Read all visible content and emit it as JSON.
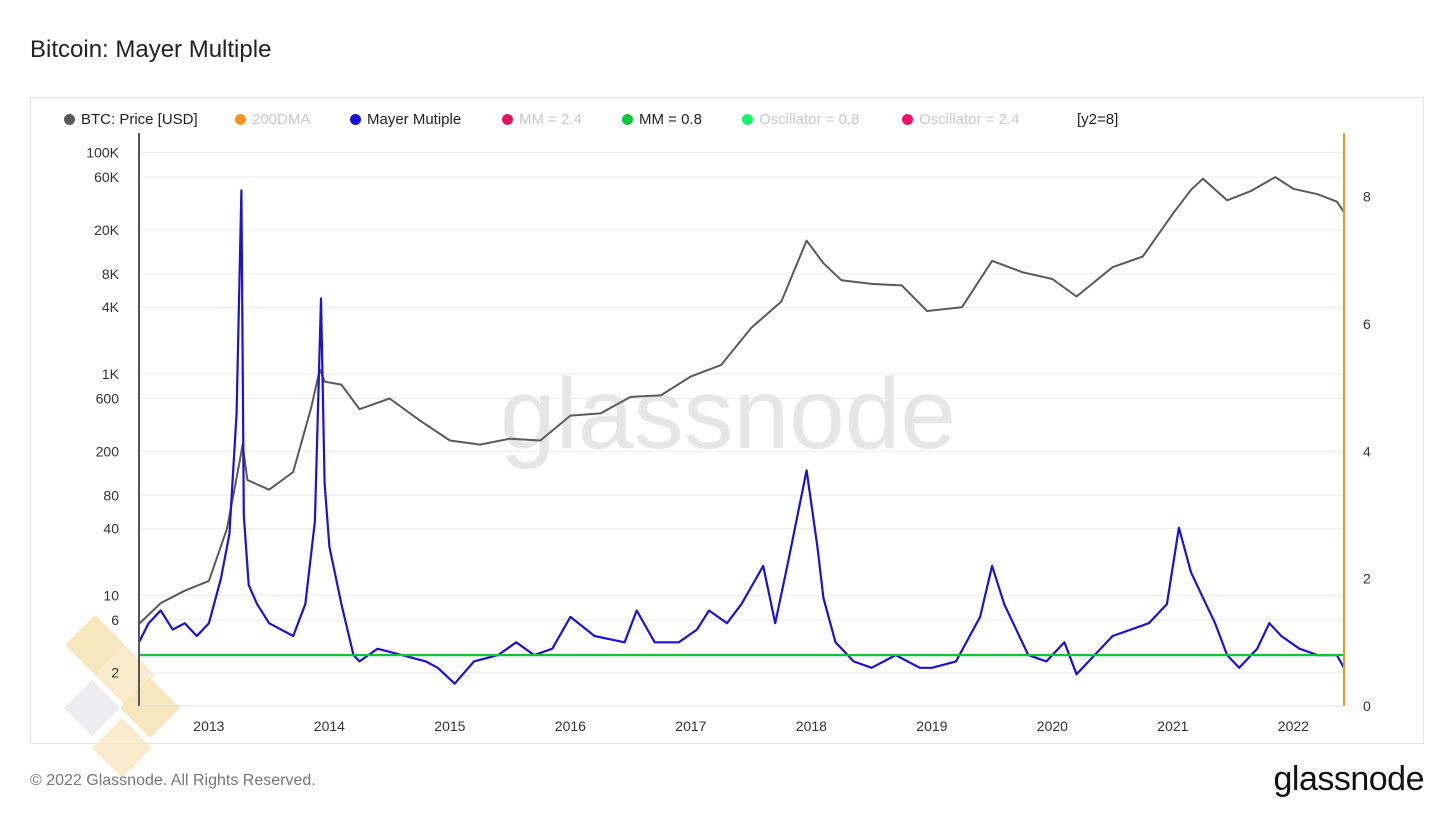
{
  "page": {
    "title": "Bitcoin: Mayer Multiple"
  },
  "legend": {
    "items": [
      {
        "label": "BTC: Price [USD]",
        "color": "#5a5a5a",
        "active": true
      },
      {
        "label": "200DMA",
        "color": "#f7931a",
        "active": false
      },
      {
        "label": "Mayer Mutiple",
        "color": "#1a12d6",
        "active": true
      },
      {
        "label": "MM = 2.4",
        "color": "#e0185f",
        "active": false
      },
      {
        "label": "MM = 0.8",
        "color": "#10c43a",
        "active": true
      },
      {
        "label": "Oscillator = 0.8",
        "color": "#1af06e",
        "active": false
      },
      {
        "label": "Oscillator = 2.4",
        "color": "#ee1166",
        "active": false
      }
    ],
    "scale_note": "[y2=8]"
  },
  "watermark": "glassnode",
  "footer": {
    "copyright": "© 2022 Glassnode. All Rights Reserved.",
    "brand": "glassnode"
  },
  "chart_data": {
    "type": "line",
    "x_ticks": [
      "2013",
      "2014",
      "2015",
      "2016",
      "2017",
      "2018",
      "2019",
      "2020",
      "2021",
      "2022"
    ],
    "x_range": [
      2012.42,
      2022.42
    ],
    "y_left": {
      "scale": "log",
      "range": [
        1,
        150000
      ],
      "ticks": [
        {
          "value": 2,
          "label": "2"
        },
        {
          "value": 6,
          "label": "6"
        },
        {
          "value": 10,
          "label": "10"
        },
        {
          "value": 40,
          "label": "40"
        },
        {
          "value": 80,
          "label": "80"
        },
        {
          "value": 200,
          "label": "200"
        },
        {
          "value": 600,
          "label": "600"
        },
        {
          "value": 1000,
          "label": "1K"
        },
        {
          "value": 4000,
          "label": "4K"
        },
        {
          "value": 8000,
          "label": "8K"
        },
        {
          "value": 20000,
          "label": "20K"
        },
        {
          "value": 60000,
          "label": "60K"
        },
        {
          "value": 100000,
          "label": "100K"
        }
      ]
    },
    "y_right": {
      "scale": "linear",
      "range": [
        0,
        9
      ],
      "ticks": [
        {
          "value": 0,
          "label": "0"
        },
        {
          "value": 2,
          "label": "2"
        },
        {
          "value": 4,
          "label": "4"
        },
        {
          "value": 6,
          "label": "6"
        },
        {
          "value": 8,
          "label": "8"
        }
      ]
    },
    "series": [
      {
        "name": "BTC: Price [USD]",
        "axis": "left",
        "color": "#5a5a5a",
        "x": [
          2012.42,
          2012.6,
          2012.8,
          2013.0,
          2013.15,
          2013.25,
          2013.28,
          2013.32,
          2013.5,
          2013.7,
          2013.85,
          2013.92,
          2013.96,
          2014.1,
          2014.25,
          2014.5,
          2014.75,
          2015.0,
          2015.25,
          2015.5,
          2015.75,
          2016.0,
          2016.25,
          2016.5,
          2016.75,
          2017.0,
          2017.25,
          2017.5,
          2017.75,
          2017.96,
          2018.1,
          2018.25,
          2018.5,
          2018.75,
          2018.96,
          2019.25,
          2019.5,
          2019.75,
          2020.0,
          2020.2,
          2020.5,
          2020.75,
          2021.0,
          2021.15,
          2021.25,
          2021.45,
          2021.65,
          2021.85,
          2022.0,
          2022.2,
          2022.36,
          2022.42
        ],
        "y": [
          5.5,
          8.5,
          11,
          13.5,
          40,
          150,
          230,
          110,
          90,
          130,
          500,
          1100,
          850,
          800,
          480,
          600,
          380,
          250,
          230,
          260,
          250,
          420,
          440,
          620,
          640,
          950,
          1200,
          2600,
          4500,
          16000,
          10000,
          7000,
          6500,
          6300,
          3700,
          4000,
          10500,
          8300,
          7200,
          5000,
          9200,
          11500,
          28000,
          46000,
          58000,
          37000,
          45000,
          60000,
          47000,
          42000,
          36000,
          29000
        ]
      },
      {
        "name": "Mayer Mutiple",
        "axis": "right",
        "color": "#1a12d6",
        "x": [
          2012.42,
          2012.5,
          2012.6,
          2012.7,
          2012.8,
          2012.9,
          2013.0,
          2013.1,
          2013.17,
          2013.23,
          2013.27,
          2013.29,
          2013.33,
          2013.4,
          2013.5,
          2013.6,
          2013.7,
          2013.8,
          2013.88,
          2013.93,
          2013.96,
          2014.0,
          2014.1,
          2014.2,
          2014.25,
          2014.4,
          2014.6,
          2014.8,
          2014.9,
          2015.04,
          2015.2,
          2015.4,
          2015.55,
          2015.7,
          2015.85,
          2016.0,
          2016.2,
          2016.45,
          2016.55,
          2016.7,
          2016.9,
          2017.05,
          2017.15,
          2017.3,
          2017.42,
          2017.6,
          2017.7,
          2017.8,
          2017.96,
          2018.05,
          2018.1,
          2018.2,
          2018.35,
          2018.5,
          2018.7,
          2018.9,
          2019.0,
          2019.2,
          2019.4,
          2019.5,
          2019.6,
          2019.8,
          2019.95,
          2020.1,
          2020.2,
          2020.35,
          2020.5,
          2020.65,
          2020.8,
          2020.95,
          2021.05,
          2021.15,
          2021.25,
          2021.35,
          2021.45,
          2021.55,
          2021.7,
          2021.8,
          2021.9,
          2022.05,
          2022.2,
          2022.36,
          2022.42
        ],
        "y": [
          1.0,
          1.3,
          1.5,
          1.2,
          1.3,
          1.1,
          1.3,
          2.0,
          2.7,
          4.6,
          8.1,
          3.0,
          1.9,
          1.6,
          1.3,
          1.2,
          1.1,
          1.6,
          2.9,
          6.4,
          3.5,
          2.5,
          1.6,
          0.8,
          0.7,
          0.9,
          0.8,
          0.7,
          0.6,
          0.35,
          0.7,
          0.8,
          1.0,
          0.8,
          0.9,
          1.4,
          1.1,
          1.0,
          1.5,
          1.0,
          1.0,
          1.2,
          1.5,
          1.3,
          1.6,
          2.2,
          1.3,
          2.2,
          3.7,
          2.5,
          1.7,
          1.0,
          0.7,
          0.6,
          0.8,
          0.6,
          0.6,
          0.7,
          1.4,
          2.2,
          1.6,
          0.8,
          0.7,
          1.0,
          0.5,
          0.8,
          1.1,
          1.2,
          1.3,
          1.6,
          2.8,
          2.1,
          1.7,
          1.3,
          0.8,
          0.6,
          0.9,
          1.3,
          1.1,
          0.9,
          0.8,
          0.8,
          0.6
        ]
      },
      {
        "name": "MM = 0.8",
        "axis": "right",
        "color": "#10c43a",
        "x": [
          2012.42,
          2022.42
        ],
        "y": [
          0.8,
          0.8
        ]
      }
    ]
  }
}
